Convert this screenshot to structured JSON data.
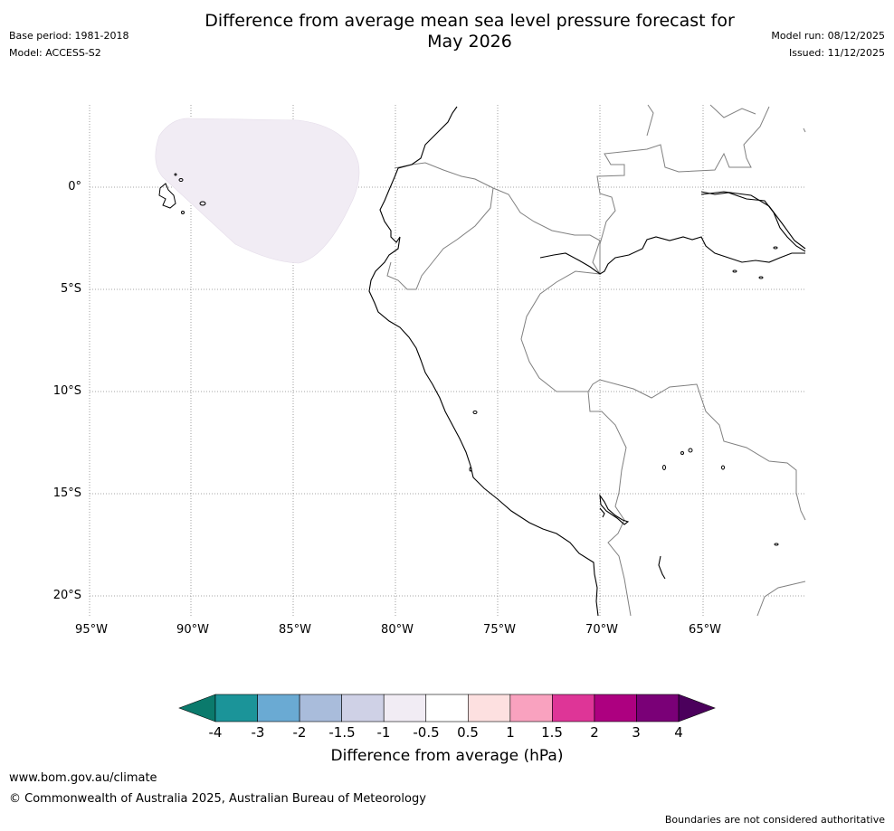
{
  "header": {
    "title_line1": "Difference from average mean sea level pressure forecast for",
    "title_line2": "May 2026",
    "base_period": "Base period: 1981-2018",
    "model": "Model: ACCESS-S2",
    "model_run": "Model run: 08/12/2025",
    "issued": "Issued: 11/12/2025"
  },
  "map": {
    "lat_labels": [
      "0°",
      "5°S",
      "10°S",
      "15°S",
      "20°S"
    ],
    "lon_labels": [
      "95°W",
      "90°W",
      "85°W",
      "80°W",
      "75°W",
      "70°W",
      "65°W"
    ],
    "anomaly_region_value": "-0.5 to -1 hPa"
  },
  "colorbar": {
    "colors": [
      "#0b7a6c",
      "#1b9499",
      "#6aaad3",
      "#a9bcdb",
      "#cfd1e6",
      "#f1ecf4",
      "#ffffff",
      "#fde0e0",
      "#f9a2bf",
      "#de3597",
      "#ad0080",
      "#7a0077",
      "#4b005c"
    ],
    "ticks": [
      "-4",
      "-3",
      "-2",
      "-1.5",
      "-1",
      "-0.5",
      "0.5",
      "1",
      "1.5",
      "2",
      "3",
      "4"
    ],
    "label": "Difference from average (hPa)"
  },
  "footer": {
    "url": "www.bom.gov.au/climate",
    "copyright": "© Commonwealth of Australia 2025, Australian Bureau of Meteorology",
    "disclaimer": "Boundaries are not considered authoritative"
  }
}
